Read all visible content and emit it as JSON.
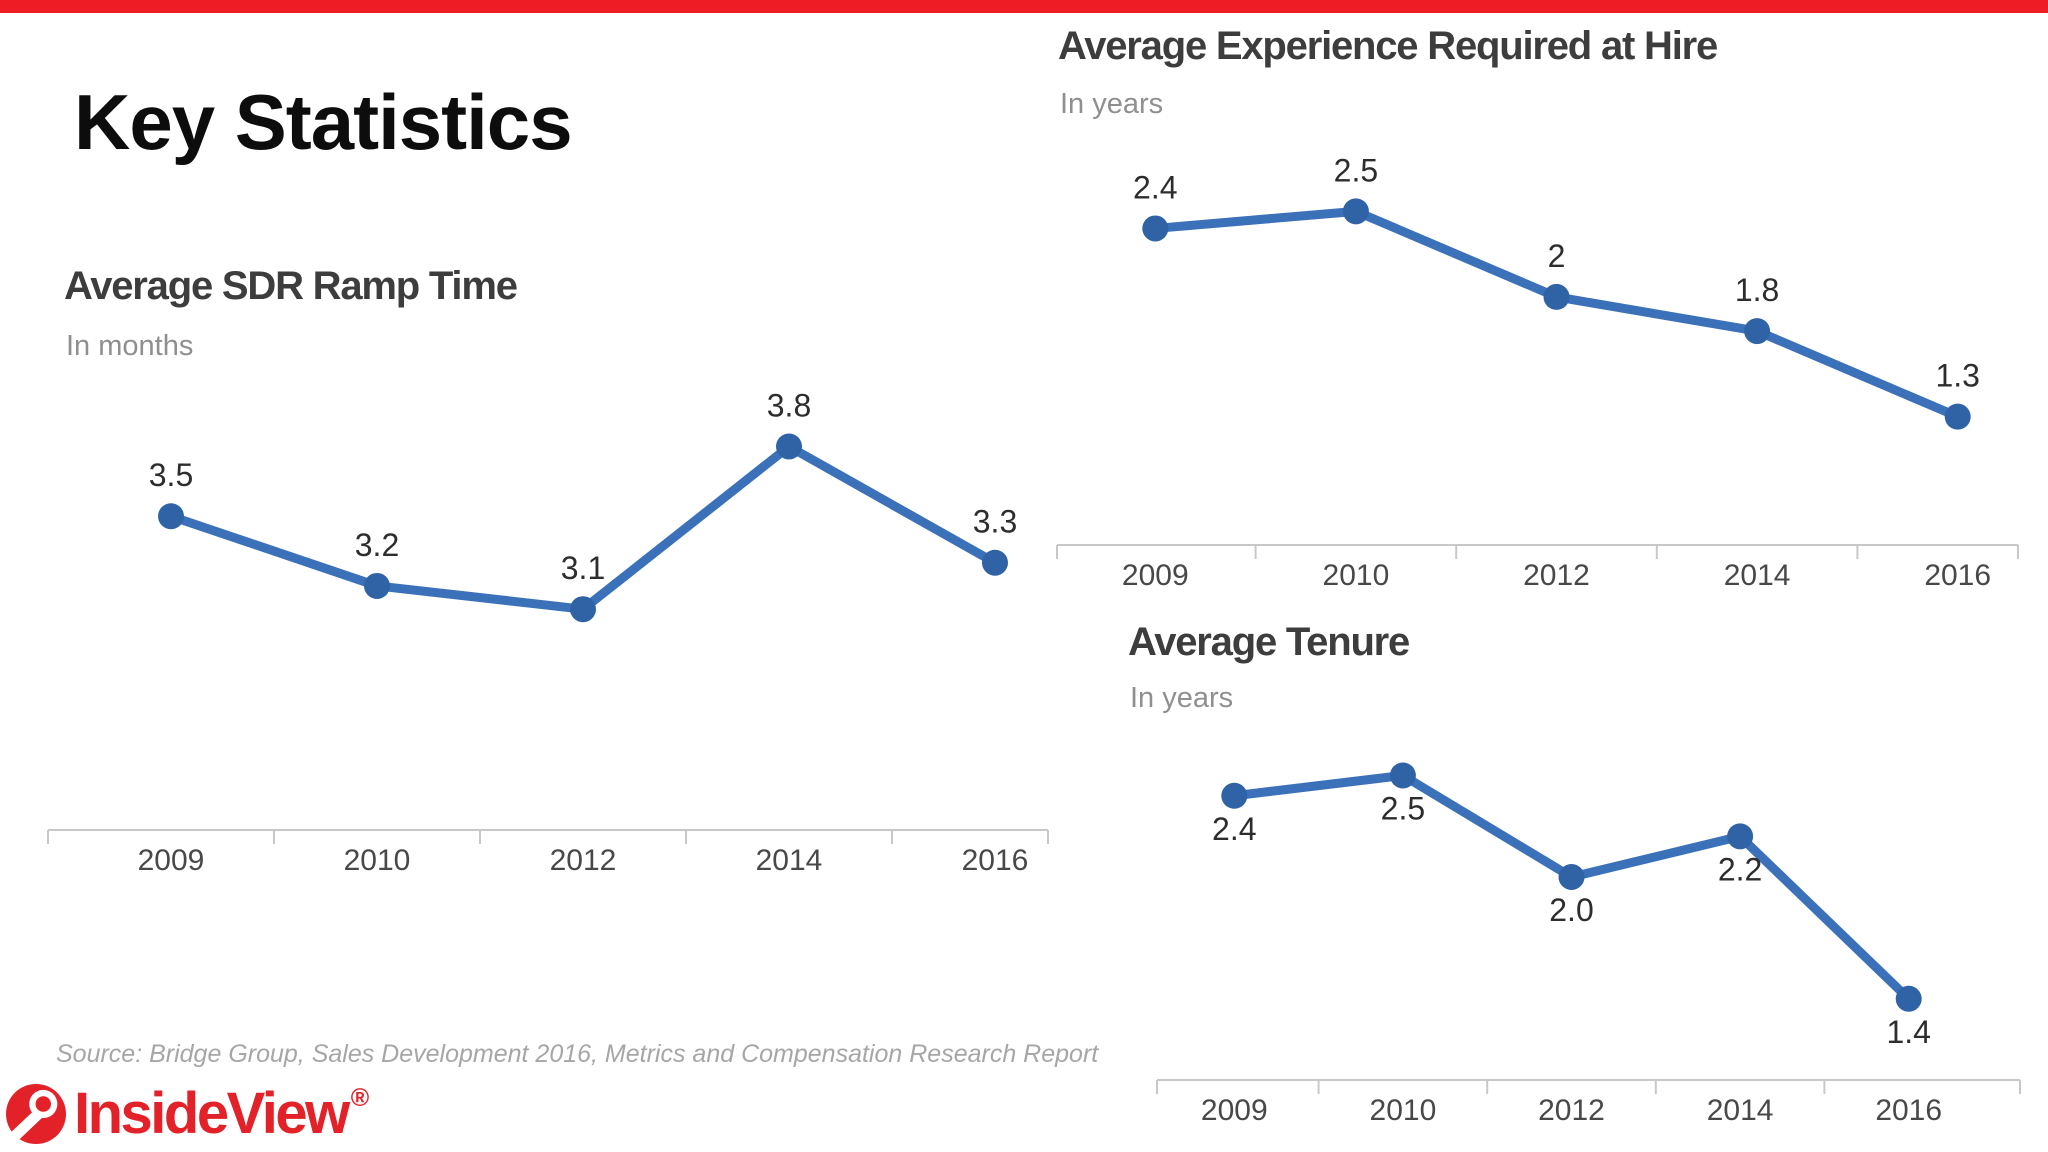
{
  "slide": {
    "title": "Key Statistics",
    "source_note": "Source: Bridge Group, Sales Development 2016, Metrics and Compensation Research Report",
    "colors": {
      "accent_red": "#ee1c25",
      "line_blue": "#3b71b8",
      "marker_blue": "#2f63a6",
      "axis_gray": "#c8c8c8",
      "value_label": "#2d2d2d",
      "year_label": "#484848"
    }
  },
  "logo": {
    "text": "InsideView",
    "registered_mark": "®",
    "color": "#e32129"
  },
  "chart_data": [
    {
      "id": "ramp-time",
      "type": "line",
      "title": "Average SDR Ramp Time",
      "subtitle": "In months",
      "categories": [
        "2009",
        "2010",
        "2012",
        "2014",
        "2016"
      ],
      "values": [
        3.5,
        3.2,
        3.1,
        3.8,
        3.3
      ],
      "point_labels": [
        "3.5",
        "3.2",
        "3.1",
        "3.8",
        "3.3"
      ],
      "label_position": "above",
      "ylim": [
        2.15,
        4.0
      ],
      "grid": false,
      "legend": false
    },
    {
      "id": "experience-at-hire",
      "type": "line",
      "title": "Average Experience Required at Hire",
      "subtitle": "In years",
      "categories": [
        "2009",
        "2010",
        "2012",
        "2014",
        "2016"
      ],
      "values": [
        2.4,
        2.5,
        2,
        1.8,
        1.3
      ],
      "point_labels": [
        "2.4",
        "2.5",
        "2",
        "1.8",
        "1.3"
      ],
      "label_position": "above",
      "ylim": [
        0.55,
        2.8
      ],
      "grid": false,
      "legend": false
    },
    {
      "id": "tenure",
      "type": "line",
      "title": "Average Tenure",
      "subtitle": "In years",
      "categories": [
        "2009",
        "2010",
        "2012",
        "2014",
        "2016"
      ],
      "values": [
        2.4,
        2.5,
        2.0,
        2.2,
        1.4
      ],
      "point_labels": [
        "2.4",
        "2.5",
        "2.0",
        "2.2",
        "1.4"
      ],
      "label_position": "below",
      "ylim": [
        1.0,
        2.65
      ],
      "grid": false,
      "legend": false
    }
  ]
}
